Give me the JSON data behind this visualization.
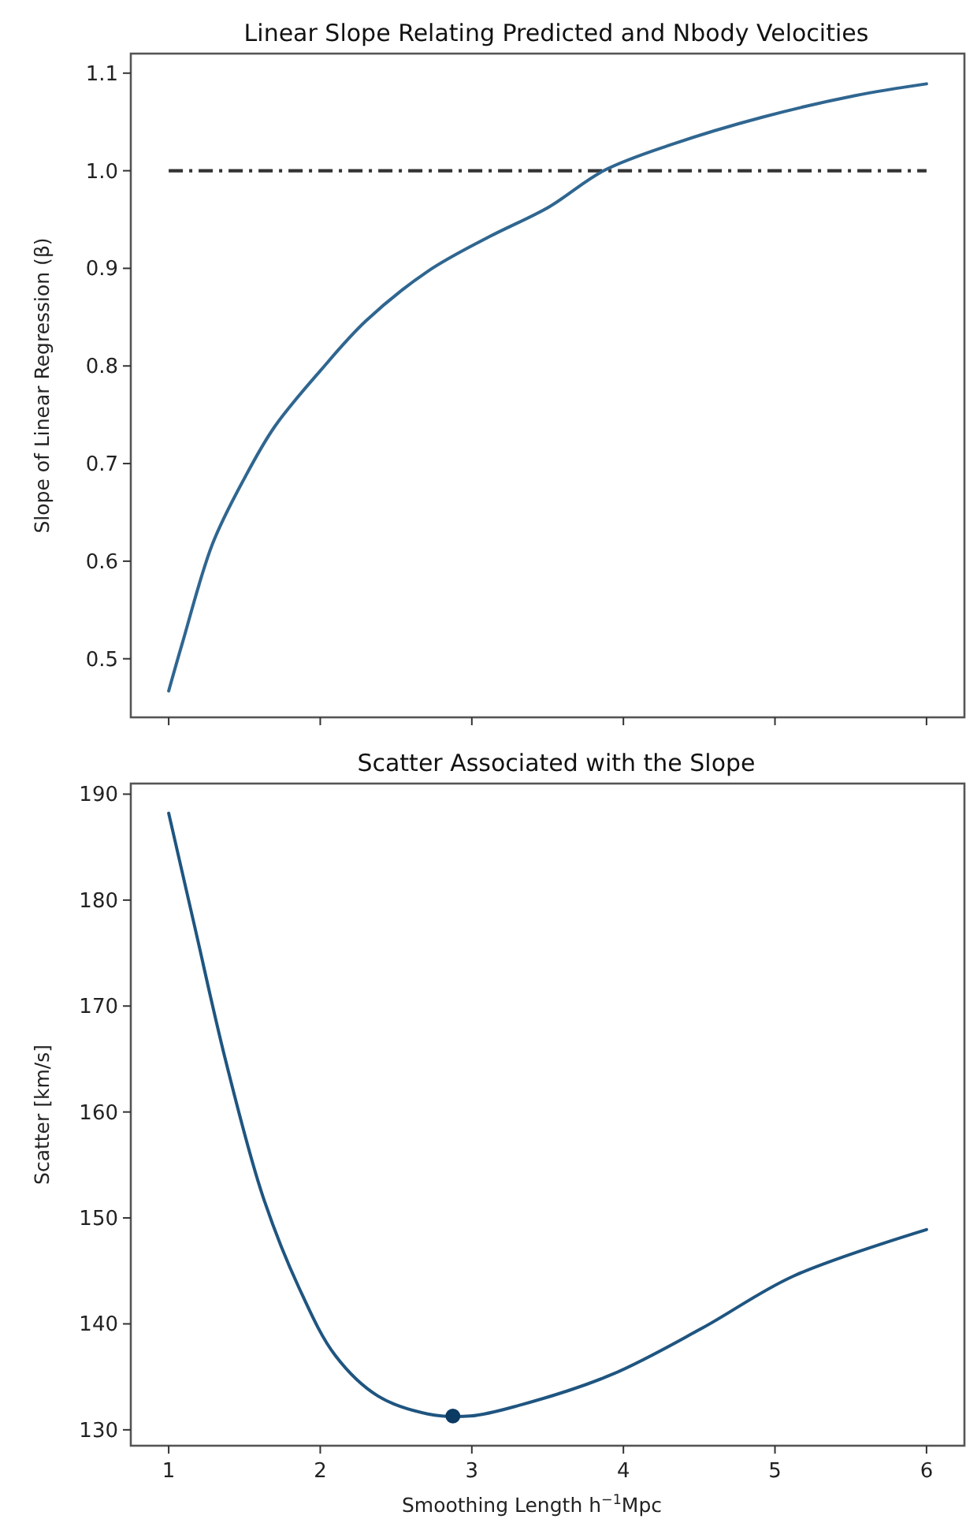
{
  "chart_data": [
    {
      "type": "line",
      "title": "Linear Slope Relating Predicted and Nbody Velocities",
      "ylabel": "Slope of Linear Regression (β)",
      "xlim": [
        0.75,
        6.25
      ],
      "xticks": [
        1,
        2,
        3,
        4,
        5,
        6
      ],
      "ylim": [
        0.44,
        1.12
      ],
      "yticks": [
        0.5,
        0.6,
        0.7,
        0.8,
        0.9,
        {
          "value": 1,
          "label": "1.0"
        },
        1.1
      ],
      "tick_labels": "y",
      "grid": false,
      "line_style": "solid",
      "marker": "none",
      "series": [
        {
          "color": "#2f6690",
          "x": [
            1,
            1.09,
            1.29,
            1.5,
            1.7,
            2.0,
            2.3,
            2.71,
            3.11,
            3.51,
            3.87,
            4.32,
            4.92,
            5.53,
            6
          ],
          "values": [
            0.467,
            0.516,
            0.618,
            0.685,
            0.738,
            0.795,
            0.846,
            0.897,
            0.932,
            0.963,
            1.0,
            1.027,
            1.055,
            1.077,
            1.089
          ]
        }
      ],
      "ref_lines": [
        {
          "axis": "y",
          "value": 1.0,
          "label": null,
          "color": "#333333",
          "line_style": "dashdot"
        }
      ]
    },
    {
      "type": "line",
      "title": "Scatter Associated with the Slope",
      "xlabel": "Smoothing Length h$^{−1}$Mpc",
      "ylabel": "Scatter [km/s]",
      "xlim": [
        0.75,
        6.25
      ],
      "xticks": [
        1,
        2,
        3,
        4,
        5,
        6
      ],
      "ylim": [
        128.5,
        191
      ],
      "yticks": [
        130,
        140,
        150,
        160,
        170,
        180,
        190
      ],
      "grid": false,
      "line_style": "solid",
      "marker": "none",
      "series": [
        {
          "color": "#1f5580",
          "x": [
            1,
            1.17,
            1.375,
            1.62,
            1.86,
            2.1,
            2.38,
            2.71,
            2.99,
            3.31,
            3.92,
            4.52,
            5.12,
            6
          ],
          "values": [
            188.2,
            177.6,
            164.9,
            152.1,
            143.4,
            137.0,
            133.2,
            131.5,
            131.3,
            132.3,
            135.2,
            139.6,
            144.5,
            148.9
          ]
        },
        {
          "type": "scatter",
          "color": "#0b3a63",
          "marker": "circle",
          "x": [
            2.875
          ],
          "values": [
            131.3
          ]
        }
      ]
    }
  ]
}
